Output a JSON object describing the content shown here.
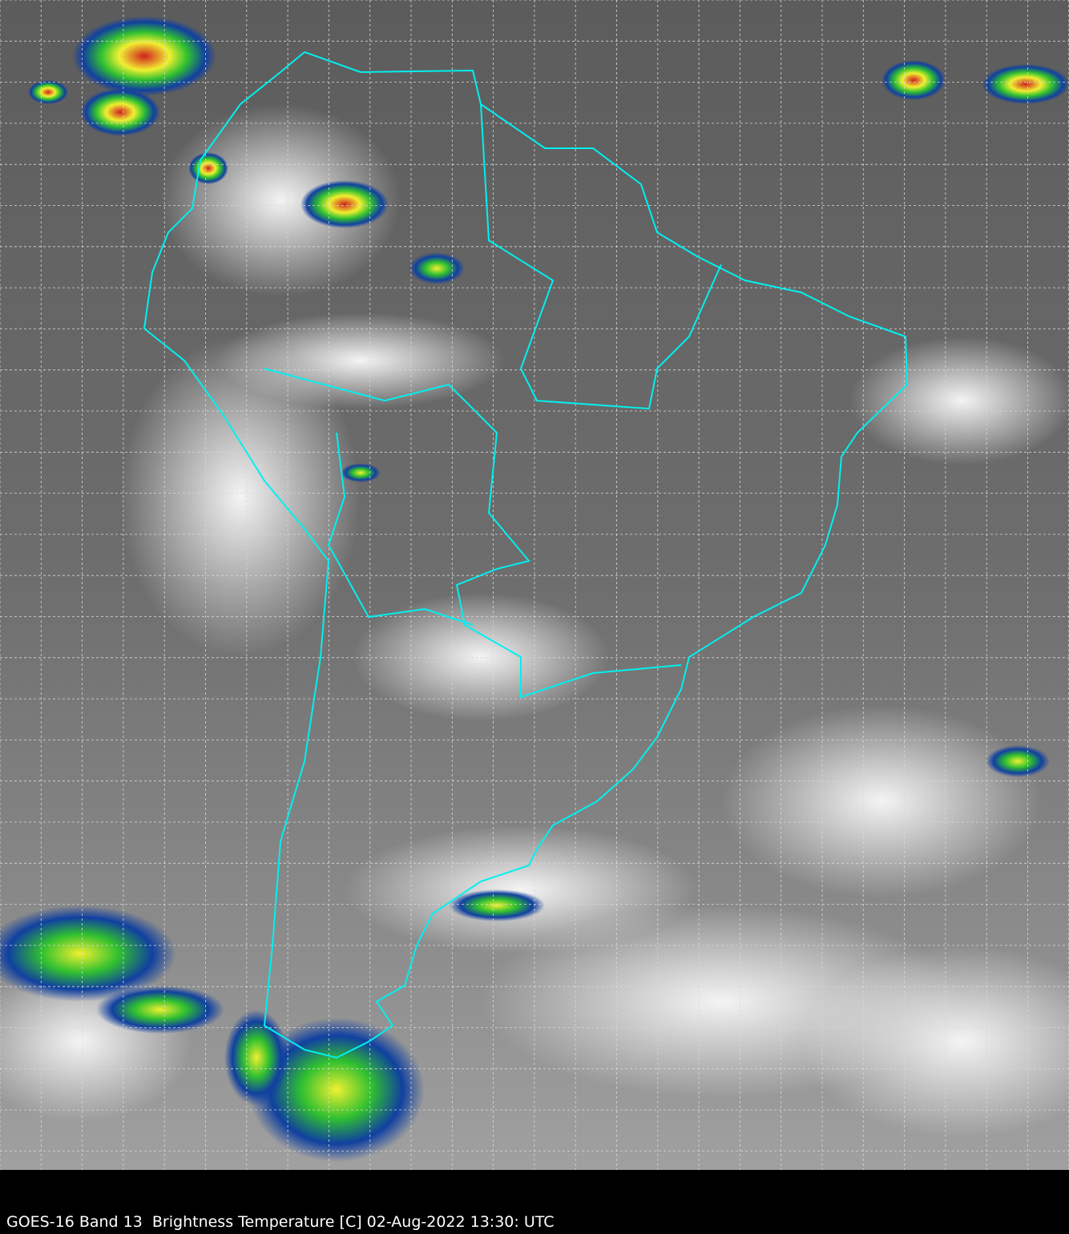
{
  "caption": "GOES-16 Band 13  Brightness Temperature [C] 02-Aug-2022 13:30: UTC",
  "colors": {
    "border": "#00f0f0",
    "grid": "#d8d8d8",
    "background_top": "#5a5a5a",
    "background_bottom": "#9a9a9a",
    "cold_cloud_blue": "#1040a0",
    "cold_cloud_green": "#30c030",
    "cold_cloud_yellow": "#f0f030",
    "cold_cloud_red": "#d02020"
  }
}
